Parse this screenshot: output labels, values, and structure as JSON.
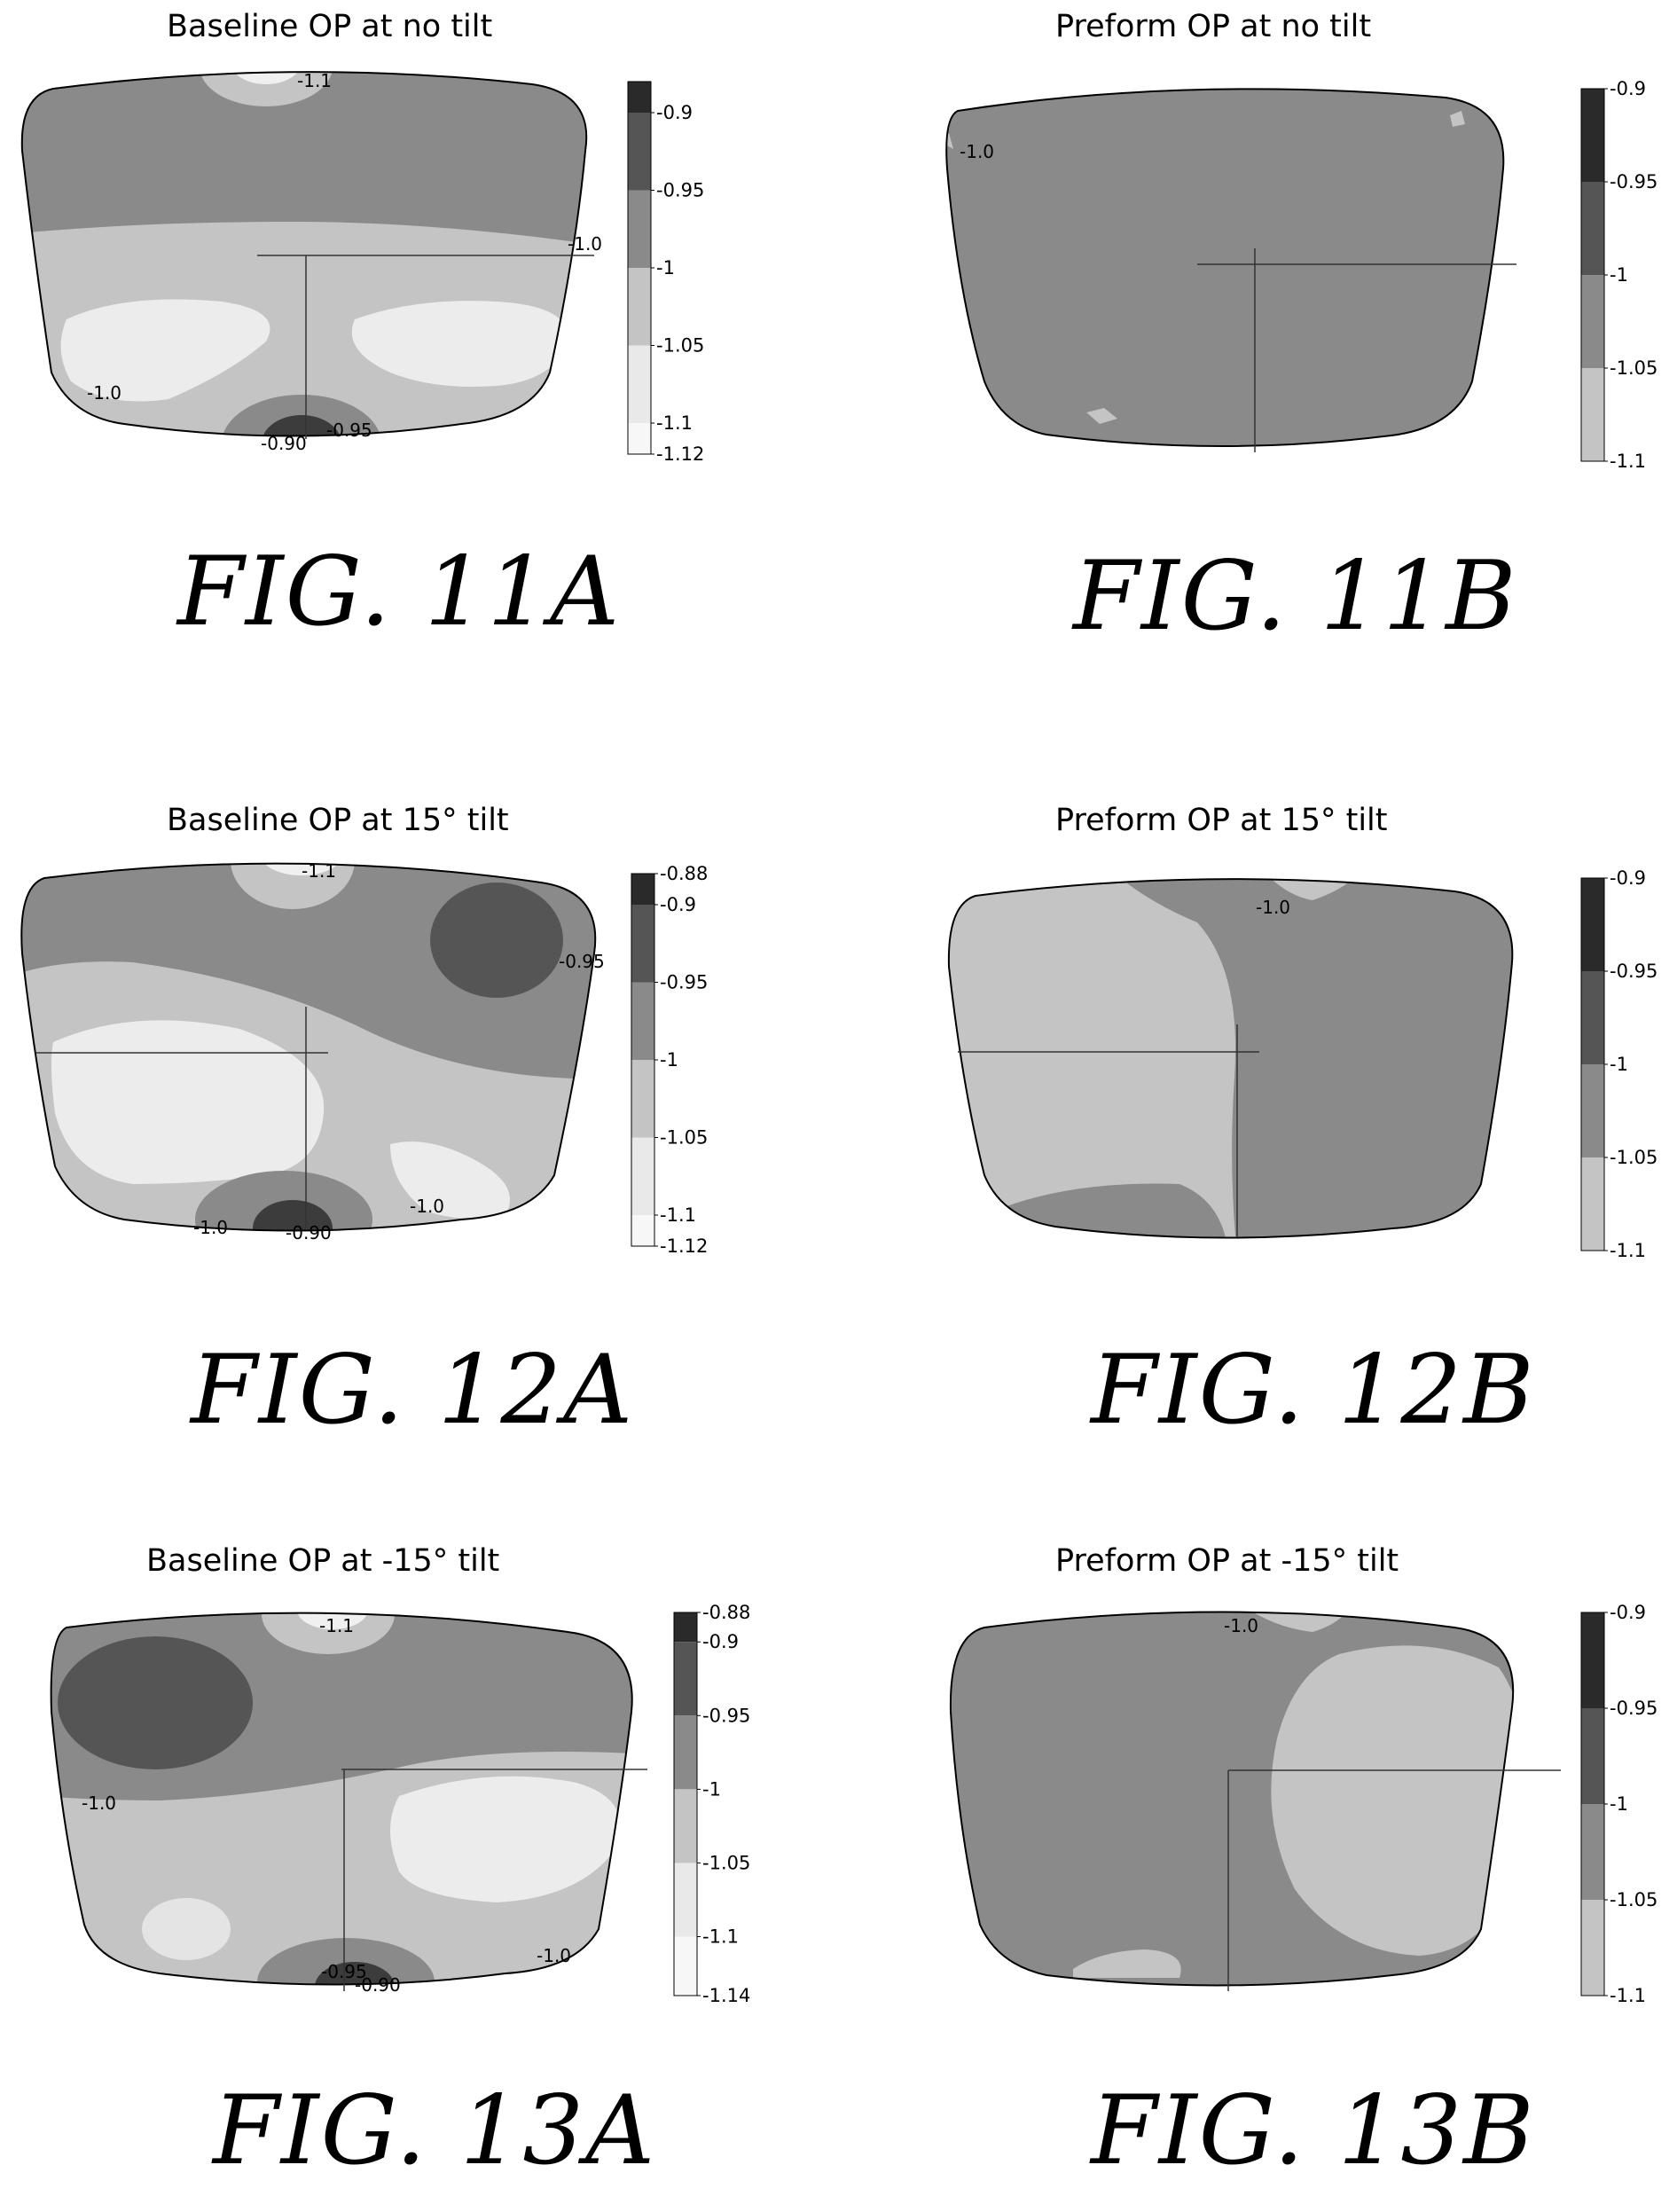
{
  "chart_data": [
    {
      "type": "heatmap",
      "fig": "FIG. 11A",
      "title": "Baseline OP at no tilt",
      "colorbar": {
        "ticks": [
          "-0.9",
          "-0.95",
          "-1",
          "-1.05",
          "-1.1",
          "-1.12"
        ],
        "range": [
          -1.12,
          -0.88
        ]
      },
      "contour_labels": [
        "-1.1",
        "-1.0",
        "-1.0",
        "-0.90",
        "-0.95"
      ]
    },
    {
      "type": "heatmap",
      "fig": "FIG. 11B",
      "title": "Preform OP at no tilt",
      "colorbar": {
        "ticks": [
          "-0.9",
          "-0.95",
          "-1",
          "-1.05",
          "-1.1"
        ],
        "range": [
          -1.1,
          -0.9
        ]
      },
      "contour_labels": [
        "-1.0"
      ]
    },
    {
      "type": "heatmap",
      "fig": "FIG. 12A",
      "title": "Baseline OP at 15° tilt",
      "colorbar": {
        "ticks": [
          "-0.88",
          "-0.9",
          "-0.95",
          "-1",
          "-1.05",
          "-1.1",
          "-1.12"
        ],
        "range": [
          -1.12,
          -0.88
        ]
      },
      "contour_labels": [
        "-1.1",
        "-0.95",
        "-1.0",
        "-1.0",
        "-0.90"
      ]
    },
    {
      "type": "heatmap",
      "fig": "FIG. 12B",
      "title": "Preform OP at 15° tilt",
      "colorbar": {
        "ticks": [
          "-0.9",
          "-0.95",
          "-1",
          "-1.05",
          "-1.1"
        ],
        "range": [
          -1.1,
          -0.9
        ]
      },
      "contour_labels": [
        "-1.0"
      ]
    },
    {
      "type": "heatmap",
      "fig": "FIG. 13A",
      "title": "Baseline OP at -15° tilt",
      "colorbar": {
        "ticks": [
          "-0.88",
          "-0.9",
          "-0.95",
          "-1",
          "-1.05",
          "-1.1",
          "-1.14"
        ],
        "range": [
          -1.14,
          -0.88
        ]
      },
      "contour_labels": [
        "-1.1",
        "-1.0",
        "-0.95",
        "-0.90",
        "-1.0"
      ]
    },
    {
      "type": "heatmap",
      "fig": "FIG. 13B",
      "title": "Preform OP at -15° tilt",
      "colorbar": {
        "ticks": [
          "-0.9",
          "-0.95",
          "-1",
          "-1.05",
          "-1.1"
        ],
        "range": [
          -1.1,
          -0.9
        ]
      },
      "contour_labels": [
        "-1.0"
      ]
    }
  ],
  "colors": {
    "lens_outline": "#000000",
    "band_dark": "#3c3c3c",
    "band_mid_dark": "#6e6e6e",
    "band_mid": "#8a8a8a",
    "band_light": "#c4c4c4",
    "band_lighter": "#e9e9e9",
    "band_white": "#f7f7f7"
  }
}
